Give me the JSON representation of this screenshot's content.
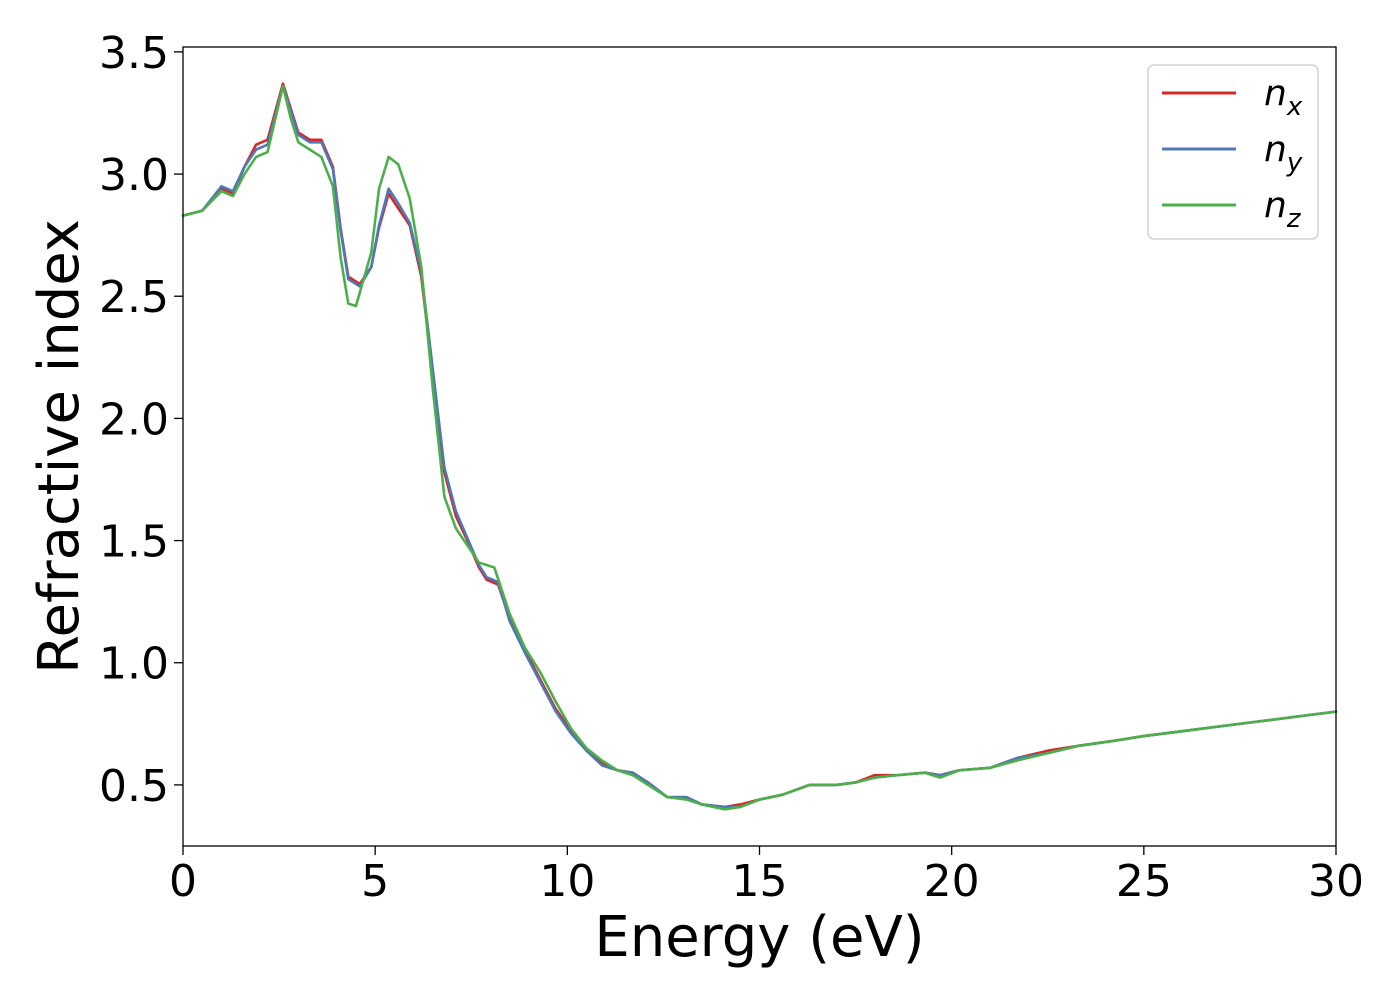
{
  "chart_data": {
    "type": "line",
    "xlabel": "Energy (eV)",
    "ylabel": "Refractive index",
    "xlim": [
      0,
      30
    ],
    "ylim": [
      0.25,
      3.52
    ],
    "xticks": [
      0,
      5,
      10,
      15,
      20,
      25,
      30
    ],
    "xtick_labels": [
      "0",
      "5",
      "10",
      "15",
      "20",
      "25",
      "30"
    ],
    "yticks": [
      0.5,
      1.0,
      1.5,
      2.0,
      2.5,
      3.0,
      3.5
    ],
    "ytick_labels": [
      "0.5",
      "1.0",
      "1.5",
      "2.0",
      "2.5",
      "3.0",
      "3.5"
    ],
    "grid": false,
    "legend_position": "top-right",
    "series": [
      {
        "name": "n",
        "subscript": "x",
        "color": "#d62728",
        "points": [
          [
            0,
            2.83
          ],
          [
            0.5,
            2.85
          ],
          [
            1.0,
            2.94
          ],
          [
            1.3,
            2.92
          ],
          [
            1.6,
            3.03
          ],
          [
            1.9,
            3.12
          ],
          [
            2.2,
            3.14
          ],
          [
            2.6,
            3.37
          ],
          [
            2.8,
            3.27
          ],
          [
            3.0,
            3.17
          ],
          [
            3.3,
            3.14
          ],
          [
            3.6,
            3.14
          ],
          [
            3.9,
            3.03
          ],
          [
            4.1,
            2.78
          ],
          [
            4.3,
            2.58
          ],
          [
            4.6,
            2.55
          ],
          [
            4.9,
            2.62
          ],
          [
            5.1,
            2.78
          ],
          [
            5.35,
            2.92
          ],
          [
            5.6,
            2.86
          ],
          [
            5.9,
            2.79
          ],
          [
            6.2,
            2.58
          ],
          [
            6.5,
            2.18
          ],
          [
            6.8,
            1.78
          ],
          [
            7.1,
            1.6
          ],
          [
            7.4,
            1.5
          ],
          [
            7.7,
            1.39
          ],
          [
            7.9,
            1.34
          ],
          [
            8.2,
            1.32
          ],
          [
            8.5,
            1.18
          ],
          [
            8.9,
            1.05
          ],
          [
            9.3,
            0.93
          ],
          [
            9.7,
            0.81
          ],
          [
            10.1,
            0.72
          ],
          [
            10.5,
            0.64
          ],
          [
            10.9,
            0.59
          ],
          [
            11.3,
            0.56
          ],
          [
            11.7,
            0.55
          ],
          [
            12.1,
            0.51
          ],
          [
            12.6,
            0.45
          ],
          [
            13.1,
            0.45
          ],
          [
            13.5,
            0.42
          ],
          [
            14.1,
            0.41
          ],
          [
            14.5,
            0.42
          ],
          [
            15.0,
            0.44
          ],
          [
            15.6,
            0.46
          ],
          [
            16.3,
            0.5
          ],
          [
            17.0,
            0.5
          ],
          [
            17.5,
            0.51
          ],
          [
            18.0,
            0.54
          ],
          [
            18.6,
            0.54
          ],
          [
            19.3,
            0.55
          ],
          [
            19.7,
            0.54
          ],
          [
            20.2,
            0.56
          ],
          [
            21.0,
            0.57
          ],
          [
            21.7,
            0.61
          ],
          [
            22.5,
            0.64
          ],
          [
            23.3,
            0.66
          ],
          [
            24.2,
            0.68
          ],
          [
            25.0,
            0.7
          ],
          [
            26.0,
            0.72
          ],
          [
            27.0,
            0.74
          ],
          [
            28.0,
            0.76
          ],
          [
            29.0,
            0.78
          ],
          [
            30.0,
            0.8
          ]
        ]
      },
      {
        "name": "n",
        "subscript": "y",
        "color": "#4e79b7",
        "points": [
          [
            0,
            2.83
          ],
          [
            0.5,
            2.85
          ],
          [
            1.0,
            2.95
          ],
          [
            1.3,
            2.93
          ],
          [
            1.6,
            3.03
          ],
          [
            1.9,
            3.1
          ],
          [
            2.2,
            3.12
          ],
          [
            2.6,
            3.36
          ],
          [
            2.8,
            3.26
          ],
          [
            3.0,
            3.16
          ],
          [
            3.3,
            3.13
          ],
          [
            3.6,
            3.13
          ],
          [
            3.9,
            3.02
          ],
          [
            4.1,
            2.77
          ],
          [
            4.3,
            2.57
          ],
          [
            4.6,
            2.54
          ],
          [
            4.9,
            2.62
          ],
          [
            5.1,
            2.79
          ],
          [
            5.35,
            2.94
          ],
          [
            5.6,
            2.88
          ],
          [
            5.9,
            2.8
          ],
          [
            6.2,
            2.6
          ],
          [
            6.5,
            2.2
          ],
          [
            6.8,
            1.8
          ],
          [
            7.1,
            1.62
          ],
          [
            7.4,
            1.51
          ],
          [
            7.7,
            1.4
          ],
          [
            7.9,
            1.35
          ],
          [
            8.2,
            1.33
          ],
          [
            8.5,
            1.17
          ],
          [
            8.9,
            1.04
          ],
          [
            9.3,
            0.92
          ],
          [
            9.7,
            0.8
          ],
          [
            10.1,
            0.71
          ],
          [
            10.5,
            0.64
          ],
          [
            10.9,
            0.58
          ],
          [
            11.3,
            0.56
          ],
          [
            11.7,
            0.55
          ],
          [
            12.1,
            0.51
          ],
          [
            12.6,
            0.45
          ],
          [
            13.1,
            0.45
          ],
          [
            13.5,
            0.42
          ],
          [
            14.1,
            0.41
          ],
          [
            14.5,
            0.41
          ],
          [
            15.0,
            0.44
          ],
          [
            15.6,
            0.46
          ],
          [
            16.3,
            0.5
          ],
          [
            17.0,
            0.5
          ],
          [
            17.5,
            0.51
          ],
          [
            18.0,
            0.53
          ],
          [
            18.6,
            0.54
          ],
          [
            19.3,
            0.55
          ],
          [
            19.7,
            0.54
          ],
          [
            20.2,
            0.56
          ],
          [
            21.0,
            0.57
          ],
          [
            21.7,
            0.61
          ],
          [
            22.5,
            0.63
          ],
          [
            23.3,
            0.66
          ],
          [
            24.2,
            0.68
          ],
          [
            25.0,
            0.7
          ],
          [
            26.0,
            0.72
          ],
          [
            27.0,
            0.74
          ],
          [
            28.0,
            0.76
          ],
          [
            29.0,
            0.78
          ],
          [
            30.0,
            0.8
          ]
        ]
      },
      {
        "name": "n",
        "subscript": "z",
        "color": "#4daf4a",
        "points": [
          [
            0,
            2.83
          ],
          [
            0.5,
            2.85
          ],
          [
            1.0,
            2.93
          ],
          [
            1.3,
            2.91
          ],
          [
            1.6,
            3.0
          ],
          [
            1.9,
            3.07
          ],
          [
            2.2,
            3.09
          ],
          [
            2.6,
            3.36
          ],
          [
            2.8,
            3.23
          ],
          [
            3.0,
            3.13
          ],
          [
            3.3,
            3.1
          ],
          [
            3.6,
            3.07
          ],
          [
            3.9,
            2.95
          ],
          [
            4.1,
            2.66
          ],
          [
            4.3,
            2.47
          ],
          [
            4.5,
            2.46
          ],
          [
            4.9,
            2.68
          ],
          [
            5.1,
            2.94
          ],
          [
            5.35,
            3.07
          ],
          [
            5.6,
            3.04
          ],
          [
            5.9,
            2.9
          ],
          [
            6.2,
            2.62
          ],
          [
            6.5,
            2.12
          ],
          [
            6.8,
            1.68
          ],
          [
            7.1,
            1.55
          ],
          [
            7.4,
            1.48
          ],
          [
            7.7,
            1.41
          ],
          [
            7.9,
            1.4
          ],
          [
            8.1,
            1.39
          ],
          [
            8.5,
            1.2
          ],
          [
            8.9,
            1.06
          ],
          [
            9.3,
            0.96
          ],
          [
            9.7,
            0.84
          ],
          [
            10.1,
            0.73
          ],
          [
            10.5,
            0.65
          ],
          [
            10.9,
            0.6
          ],
          [
            11.3,
            0.56
          ],
          [
            11.7,
            0.54
          ],
          [
            12.1,
            0.5
          ],
          [
            12.6,
            0.45
          ],
          [
            13.1,
            0.44
          ],
          [
            13.5,
            0.42
          ],
          [
            14.1,
            0.4
          ],
          [
            14.5,
            0.41
          ],
          [
            15.0,
            0.44
          ],
          [
            15.6,
            0.46
          ],
          [
            16.3,
            0.5
          ],
          [
            17.0,
            0.5
          ],
          [
            17.5,
            0.51
          ],
          [
            18.0,
            0.53
          ],
          [
            18.6,
            0.54
          ],
          [
            19.3,
            0.55
          ],
          [
            19.7,
            0.53
          ],
          [
            20.2,
            0.56
          ],
          [
            21.0,
            0.57
          ],
          [
            21.7,
            0.6
          ],
          [
            22.5,
            0.63
          ],
          [
            23.3,
            0.66
          ],
          [
            24.2,
            0.68
          ],
          [
            25.0,
            0.7
          ],
          [
            26.0,
            0.72
          ],
          [
            27.0,
            0.74
          ],
          [
            28.0,
            0.76
          ],
          [
            29.0,
            0.78
          ],
          [
            30.0,
            0.8
          ]
        ]
      }
    ]
  }
}
